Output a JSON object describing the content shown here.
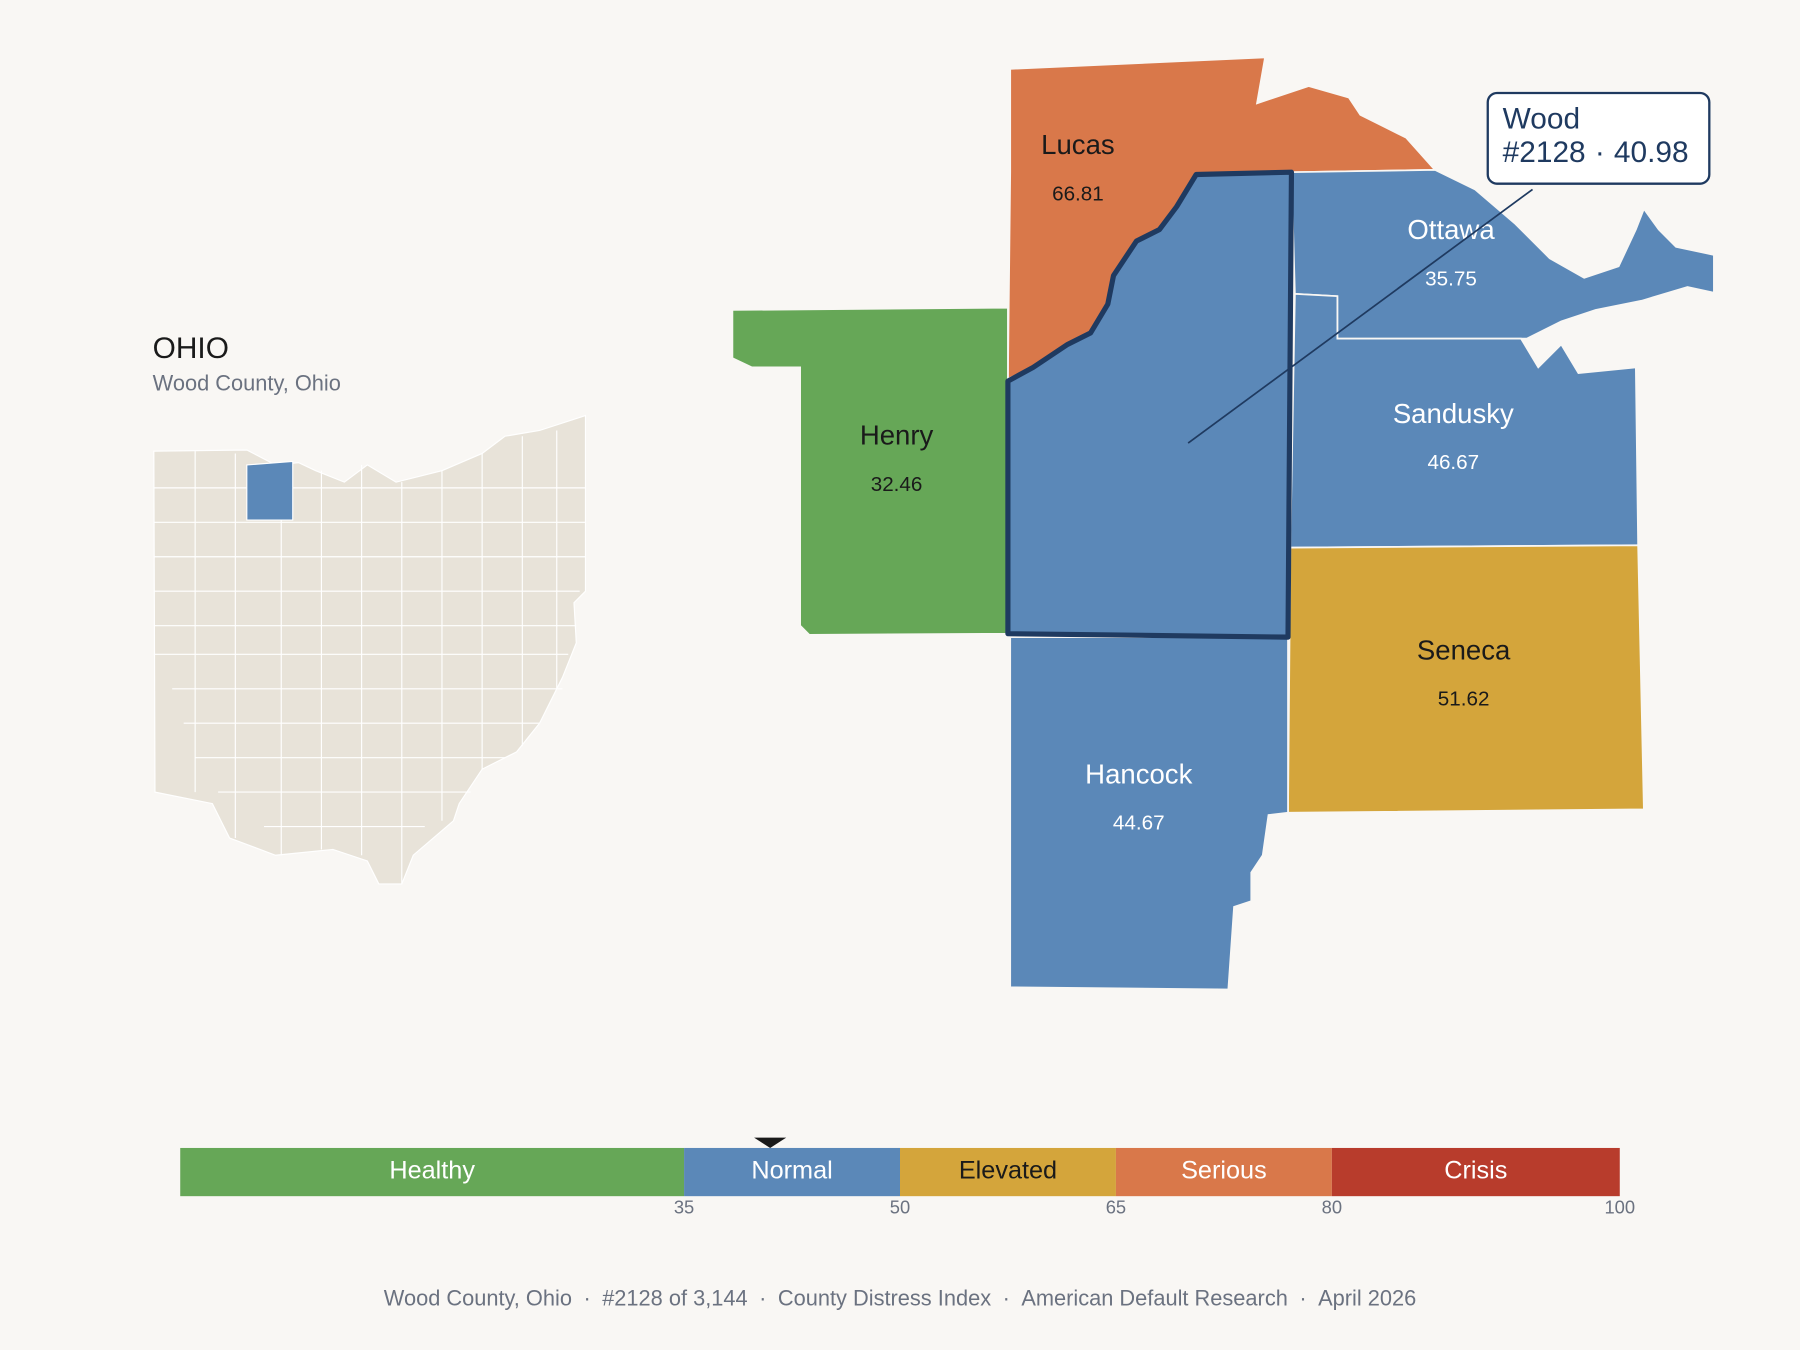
{
  "header": {
    "title": "OHIO",
    "subtitle": "Wood County, Ohio"
  },
  "counties": [
    {
      "name": "Lucas",
      "score": 66.81,
      "color": "#d9784a"
    },
    {
      "name": "Henry",
      "score": 32.46,
      "color": "#66a757"
    },
    {
      "name": "Ottawa",
      "score": 35.75,
      "color": "#5b88b8"
    },
    {
      "name": "Sandusky",
      "score": 46.67,
      "color": "#5b88b8"
    },
    {
      "name": "Seneca",
      "score": 51.62,
      "color": "#d4a53b"
    },
    {
      "name": "Hancock",
      "score": 44.67,
      "color": "#5b88b8"
    }
  ],
  "selected": {
    "name": "Wood",
    "color": "#5b88b8",
    "outline": "#1f3a60"
  },
  "tooltip": {
    "name": "Wood",
    "rank": "#2128",
    "separator": "·",
    "score": 40.98
  },
  "legend": {
    "range": [
      0,
      100
    ],
    "bands": [
      {
        "name": "Healthy",
        "color": "#66a757"
      },
      {
        "name": "Normal",
        "color": "#5b88b8"
      },
      {
        "name": "Elevated",
        "color": "#d4a53b"
      },
      {
        "name": "Serious",
        "color": "#d9784a"
      },
      {
        "name": "Crisis",
        "color": "#b83c2c"
      }
    ],
    "ticks": [
      35,
      50,
      65,
      80,
      100
    ]
  },
  "footer": {
    "items": [
      "Wood County, Ohio",
      "#2128 of 3,144",
      "County Distress Index",
      "American Default Research",
      "April 2026"
    ],
    "separator": "·"
  }
}
